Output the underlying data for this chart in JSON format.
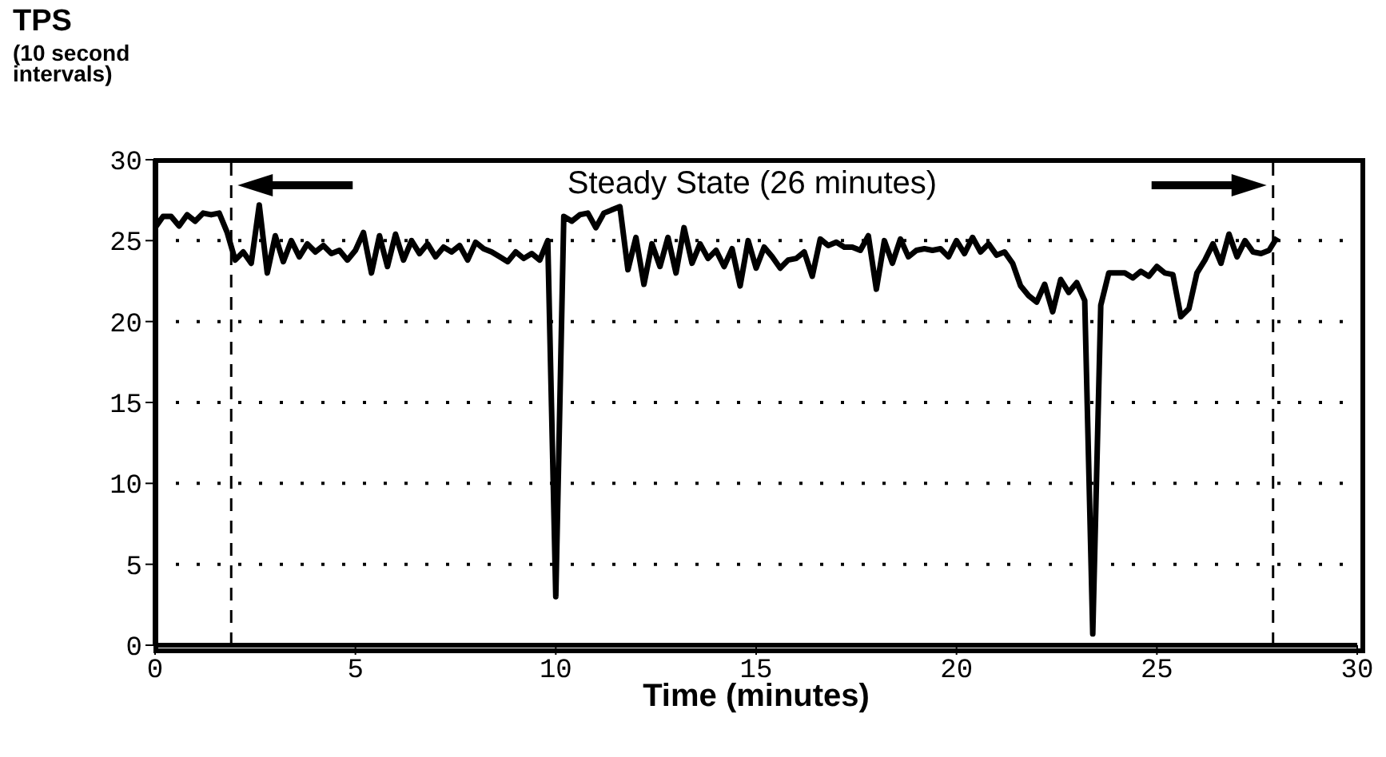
{
  "chart_data": {
    "type": "line",
    "ylabel": "TPS\n(10 second\nintervals)",
    "xlabel": "Time (minutes)",
    "x": [
      0,
      0.2,
      0.4,
      0.6,
      0.8,
      1,
      1.2,
      1.4,
      1.6,
      1.8,
      2,
      2.2,
      2.4,
      2.6,
      2.8,
      3,
      3.2,
      3.4,
      3.6,
      3.8,
      4,
      4.2,
      4.4,
      4.6,
      4.8,
      5,
      5.2,
      5.4,
      5.6,
      5.8,
      6,
      6.2,
      6.4,
      6.6,
      6.8,
      7,
      7.2,
      7.4,
      7.6,
      7.8,
      8,
      8.2,
      8.4,
      8.6,
      8.8,
      9,
      9.2,
      9.4,
      9.6,
      9.8,
      10,
      10.2,
      10.4,
      10.6,
      10.8,
      11,
      11.2,
      11.4,
      11.6,
      11.8,
      12,
      12.2,
      12.4,
      12.6,
      12.8,
      13,
      13.2,
      13.4,
      13.6,
      13.8,
      14,
      14.2,
      14.4,
      14.6,
      14.8,
      15,
      15.2,
      15.4,
      15.6,
      15.8,
      16,
      16.2,
      16.4,
      16.6,
      16.8,
      17,
      17.2,
      17.4,
      17.6,
      17.8,
      18,
      18.2,
      18.4,
      18.6,
      18.8,
      19,
      19.2,
      19.4,
      19.6,
      19.8,
      20,
      20.2,
      20.4,
      20.6,
      20.8,
      21,
      21.2,
      21.4,
      21.6,
      21.8,
      22,
      22.2,
      22.4,
      22.6,
      22.8,
      23,
      23.2,
      23.4,
      23.6,
      23.8,
      24,
      24.2,
      24.4,
      24.6,
      24.8,
      25,
      25.2,
      25.4,
      25.6,
      25.8,
      26,
      26.2,
      26.4,
      26.6,
      26.8,
      27,
      27.2,
      27.4,
      27.6,
      27.8,
      28
    ],
    "series": [
      {
        "color": "#000000",
        "values": [
          25.8,
          26.5,
          26.5,
          25.9,
          26.6,
          26.2,
          26.7,
          26.6,
          26.7,
          25.5,
          23.8,
          24.3,
          23.6,
          27.2,
          23.0,
          25.3,
          23.7,
          25.0,
          24.0,
          24.8,
          24.3,
          24.7,
          24.2,
          24.4,
          23.8,
          24.4,
          25.5,
          23.0,
          25.3,
          23.4,
          25.4,
          23.8,
          25.0,
          24.2,
          24.8,
          24.0,
          24.6,
          24.3,
          24.7,
          23.8,
          24.9,
          24.5,
          24.3,
          24.0,
          23.7,
          24.3,
          23.9,
          24.2,
          23.8,
          25.0,
          3.0,
          26.5,
          26.2,
          26.6,
          26.7,
          25.8,
          26.7,
          26.9,
          27.1,
          23.2,
          25.2,
          22.3,
          24.8,
          23.4,
          25.2,
          23.0,
          25.8,
          23.6,
          24.8,
          23.9,
          24.4,
          23.4,
          24.5,
          22.2,
          25.0,
          23.3,
          24.6,
          24.0,
          23.3,
          23.8,
          23.9,
          24.3,
          22.8,
          25.1,
          24.7,
          24.9,
          24.6,
          24.6,
          24.4,
          25.3,
          22.0,
          25.0,
          23.6,
          25.1,
          24.0,
          24.4,
          24.5,
          24.4,
          24.5,
          24.0,
          25.0,
          24.2,
          25.2,
          24.3,
          24.8,
          24.1,
          24.3,
          23.6,
          22.2,
          21.6,
          21.2,
          22.3,
          20.6,
          22.6,
          21.8,
          22.4,
          21.3,
          0.7,
          21.0,
          23.0,
          23.0,
          23.0,
          22.7,
          23.1,
          22.8,
          23.4,
          23.0,
          22.9,
          20.3,
          20.8,
          23.0,
          23.8,
          24.8,
          23.6,
          25.4,
          24.0,
          25.0,
          24.3,
          24.2,
          24.4,
          25.2
        ]
      }
    ],
    "xlim": [
      0,
      30
    ],
    "xticks": [
      0,
      5,
      10,
      15,
      20,
      25,
      30
    ],
    "ylim": [
      0,
      30
    ],
    "yticks": [
      0,
      5,
      10,
      15,
      20,
      25,
      30
    ],
    "grid": "y",
    "marker": "none",
    "line_style": "solid",
    "ref_lines": [
      {
        "axis": "x",
        "value": 1.9,
        "line_style": "dashed",
        "color": "#000000"
      },
      {
        "axis": "x",
        "value": 27.9,
        "line_style": "dashed",
        "color": "#000000"
      }
    ],
    "annotations": [
      "Steady State (26 minutes)"
    ]
  }
}
